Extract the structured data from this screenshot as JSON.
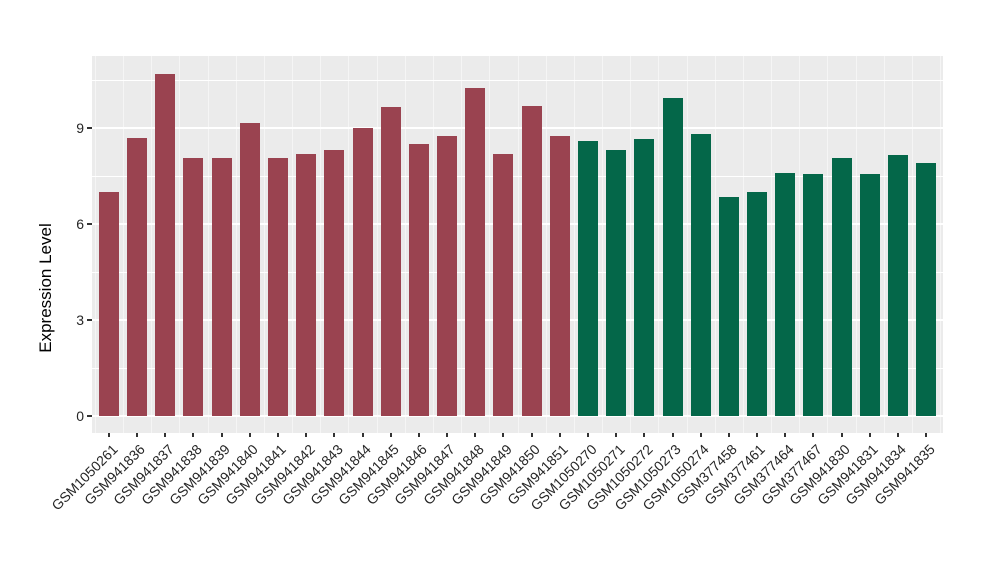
{
  "chart_data": {
    "type": "bar",
    "title": "",
    "xlabel": "",
    "ylabel": "Expression Level",
    "yticks": [
      0,
      3,
      6,
      9
    ],
    "yticks_minor": [
      1.5,
      4.5,
      7.5,
      10.5
    ],
    "ylim": [
      -0.55,
      11.25
    ],
    "grid": true,
    "legend_position": "none",
    "x_tick_rotation": 45,
    "panel_background": "#EBEBEB",
    "gridline_color": "#ffffff",
    "categories": [
      "GSM1050261",
      "GSM941836",
      "GSM941837",
      "GSM941838",
      "GSM941839",
      "GSM941840",
      "GSM941841",
      "GSM941842",
      "GSM941843",
      "GSM941844",
      "GSM941845",
      "GSM941846",
      "GSM941847",
      "GSM941848",
      "GSM941849",
      "GSM941850",
      "GSM941851",
      "GSM1050270",
      "GSM1050271",
      "GSM1050272",
      "GSM1050273",
      "GSM1050274",
      "GSM377458",
      "GSM377461",
      "GSM377464",
      "GSM377467",
      "GSM941830",
      "GSM941831",
      "GSM941834",
      "GSM941835"
    ],
    "values": [
      7.0,
      8.7,
      10.7,
      8.05,
      8.05,
      9.15,
      8.05,
      8.2,
      8.3,
      9.0,
      9.65,
      8.5,
      8.75,
      10.25,
      8.2,
      9.7,
      8.75,
      8.6,
      8.3,
      8.65,
      9.95,
      8.8,
      6.85,
      7.0,
      7.6,
      7.55,
      8.05,
      7.55,
      8.15,
      7.9
    ],
    "groups": [
      "group1",
      "group1",
      "group1",
      "group1",
      "group1",
      "group1",
      "group1",
      "group1",
      "group1",
      "group1",
      "group1",
      "group1",
      "group1",
      "group1",
      "group1",
      "group1",
      "group1",
      "group2",
      "group2",
      "group2",
      "group2",
      "group2",
      "group2",
      "group2",
      "group2",
      "group2",
      "group2",
      "group2",
      "group2",
      "group2"
    ],
    "colors": {
      "group1": "#9A4350",
      "group2": "#046749"
    },
    "text_color": "#262626",
    "tick_color": "#333333"
  }
}
